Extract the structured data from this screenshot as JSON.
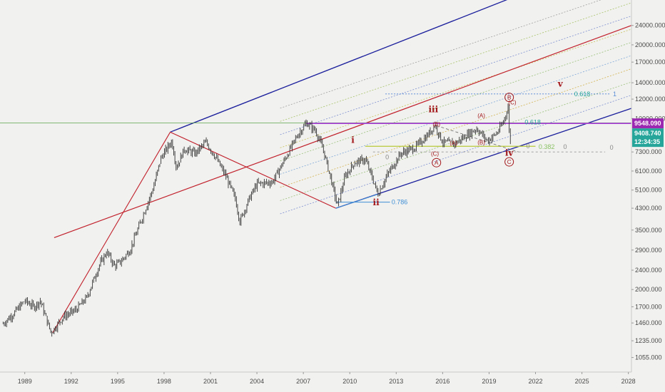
{
  "chart_data": {
    "type": "candlestick",
    "title": "",
    "xlabel": "",
    "ylabel": "",
    "y_scale": "log",
    "ylim": [
      920,
      30500
    ],
    "xlim": [
      1987.4,
      2028.2
    ],
    "grid": false,
    "y_ticks": [
      "24000.000",
      "20000.000",
      "17000.000",
      "14000.000",
      "12000.000",
      "10000.000",
      "7300.000",
      "6100.000",
      "5100.000",
      "4300.000",
      "3500.000",
      "2900.000",
      "2400.000",
      "2000.000",
      "1700.000",
      "1460.000",
      "1235.000",
      "1055.000"
    ],
    "x_ticks": [
      "1989",
      "1992",
      "1995",
      "1998",
      "2001",
      "2004",
      "2007",
      "2010",
      "2013",
      "2016",
      "2019",
      "2022",
      "2025",
      "2028"
    ],
    "price_path": [
      {
        "x": 1987.6,
        "y": 1450
      },
      {
        "x": 1988.3,
        "y": 1600
      },
      {
        "x": 1989.0,
        "y": 1800
      },
      {
        "x": 1989.6,
        "y": 1700
      },
      {
        "x": 1990.0,
        "y": 1800
      },
      {
        "x": 1990.7,
        "y": 1330
      },
      {
        "x": 1991.5,
        "y": 1550
      },
      {
        "x": 1992.3,
        "y": 1650
      },
      {
        "x": 1993.0,
        "y": 1850
      },
      {
        "x": 1993.8,
        "y": 2500
      },
      {
        "x": 1994.3,
        "y": 2850
      },
      {
        "x": 1994.8,
        "y": 2500
      },
      {
        "x": 1995.2,
        "y": 2600
      },
      {
        "x": 1995.8,
        "y": 2900
      },
      {
        "x": 1996.5,
        "y": 3800
      },
      {
        "x": 1997.3,
        "y": 5200
      },
      {
        "x": 1997.8,
        "y": 6900
      },
      {
        "x": 1998.5,
        "y": 8100
      },
      {
        "x": 1998.8,
        "y": 6300
      },
      {
        "x": 1999.3,
        "y": 7500
      },
      {
        "x": 2000.0,
        "y": 7200
      },
      {
        "x": 2000.7,
        "y": 8000
      },
      {
        "x": 2001.3,
        "y": 7000
      },
      {
        "x": 2002.0,
        "y": 5800
      },
      {
        "x": 2002.6,
        "y": 4700
      },
      {
        "x": 2002.9,
        "y": 3800
      },
      {
        "x": 2003.5,
        "y": 4700
      },
      {
        "x": 2004.0,
        "y": 5400
      },
      {
        "x": 2005.0,
        "y": 5500
      },
      {
        "x": 2005.8,
        "y": 6800
      },
      {
        "x": 2006.6,
        "y": 8500
      },
      {
        "x": 2007.2,
        "y": 9600
      },
      {
        "x": 2007.8,
        "y": 8900
      },
      {
        "x": 2008.3,
        "y": 7400
      },
      {
        "x": 2008.8,
        "y": 5600
      },
      {
        "x": 2009.2,
        "y": 4400
      },
      {
        "x": 2009.7,
        "y": 5800
      },
      {
        "x": 2010.3,
        "y": 6600
      },
      {
        "x": 2011.0,
        "y": 6800
      },
      {
        "x": 2011.6,
        "y": 5400
      },
      {
        "x": 2011.8,
        "y": 4900
      },
      {
        "x": 2012.5,
        "y": 6000
      },
      {
        "x": 2013.3,
        "y": 7200
      },
      {
        "x": 2014.2,
        "y": 7600
      },
      {
        "x": 2015.0,
        "y": 8500
      },
      {
        "x": 2015.5,
        "y": 9400
      },
      {
        "x": 2016.0,
        "y": 8000
      },
      {
        "x": 2016.8,
        "y": 7900
      },
      {
        "x": 2017.5,
        "y": 8500
      },
      {
        "x": 2018.2,
        "y": 9100
      },
      {
        "x": 2018.9,
        "y": 8100
      },
      {
        "x": 2019.5,
        "y": 8700
      },
      {
        "x": 2019.9,
        "y": 9600
      },
      {
        "x": 2020.1,
        "y": 10500
      },
      {
        "x": 2020.25,
        "y": 11300
      },
      {
        "x": 2020.35,
        "y": 7000
      },
      {
        "x": 2020.4,
        "y": 9409
      }
    ]
  },
  "channels": {
    "blue_upper": [
      {
        "x": 1998.4,
        "y": 8800
      },
      {
        "x": 2026.5,
        "y": 44000
      }
    ],
    "blue_lower": [
      {
        "x": 2009.1,
        "y": 4300
      },
      {
        "x": 2028.2,
        "y": 11000
      }
    ],
    "red_mid": [
      {
        "x": 1990.9,
        "y": 3260
      },
      {
        "x": 2028.2,
        "y": 24000
      }
    ],
    "red_cross": [
      {
        "x": 1998.4,
        "y": 8800
      },
      {
        "x": 2009.1,
        "y": 4300
      }
    ],
    "red_impulse": [
      {
        "x": 1990.8,
        "y": 1330
      },
      {
        "x": 1998.4,
        "y": 8800
      }
    ]
  },
  "hlines": {
    "green_level": 9600,
    "purple_level": 9548.09,
    "fib_blue_upper": 12600,
    "yellow_level": 7700,
    "grey_lower": 7300
  },
  "wave_labels": [
    {
      "text": "i",
      "x": 2010.2,
      "y": 7950
    },
    {
      "text": "ii",
      "x": 2011.7,
      "y": 4420
    },
    {
      "text": "iii",
      "x": 2015.4,
      "y": 10600
    },
    {
      "text": "iv",
      "x": 2020.3,
      "y": 7050
    },
    {
      "text": "v",
      "x": 2023.6,
      "y": 13500
    }
  ],
  "sub_labels": [
    {
      "text": "(A)",
      "x": 2016.7,
      "y": 7800
    },
    {
      "text": "(B)",
      "x": 2015.6,
      "y": 9300
    },
    {
      "text": "(C)",
      "x": 2015.5,
      "y": 7050
    },
    {
      "text": "(A)",
      "x": 2018.5,
      "y": 10100
    },
    {
      "text": "(B)",
      "x": 2018.5,
      "y": 7850
    },
    {
      "text": "(C)",
      "x": 2020.5,
      "y": 11400
    }
  ],
  "circled_labels": [
    {
      "text": "A",
      "x": 2015.6,
      "y": 6600
    },
    {
      "text": "B",
      "x": 2020.3,
      "y": 12200
    },
    {
      "text": "C",
      "x": 2020.3,
      "y": 6650
    }
  ],
  "fib_labels": [
    {
      "text": "0.618",
      "x": 2024.5,
      "y": 12600,
      "color": "#26a69a"
    },
    {
      "text": "1",
      "x": 2027.0,
      "y": 12600,
      "color": "#5b8fd6"
    },
    {
      "text": "0.618",
      "x": 2021.3,
      "y": 9650,
      "color": "#26a69a"
    },
    {
      "text": "0.786",
      "x": 2012.7,
      "y": 4550,
      "color": "#3f8fd6"
    },
    {
      "text": "0.382",
      "x": 2022.2,
      "y": 7650,
      "color": "#8ac265"
    },
    {
      "text": "0",
      "x": 2012.3,
      "y": 6950,
      "color": "#888888"
    },
    {
      "text": "0",
      "x": 2021.4,
      "y": 7700,
      "color": "#888888"
    },
    {
      "text": "0",
      "x": 2023.8,
      "y": 7650,
      "color": "#888888"
    },
    {
      "text": "0",
      "x": 2026.8,
      "y": 7600,
      "color": "#888888"
    }
  ],
  "price_badges": {
    "purple": {
      "text": "9548.090",
      "color": "#9c27b0",
      "y": 9548.09
    },
    "current": {
      "text": "9408.740",
      "color": "#26a69a",
      "y": 9408.74
    },
    "timer": {
      "text": "12:34:35",
      "color": "#26a69a"
    }
  },
  "colors": {
    "background": "#f1f1ef",
    "blue_line": "#1b1f9c",
    "red_line": "#c1202b",
    "candle": "#333333",
    "axis": "#c9c9c9",
    "green_line": "#5aa54a",
    "purple_line": "#b03ee0"
  }
}
